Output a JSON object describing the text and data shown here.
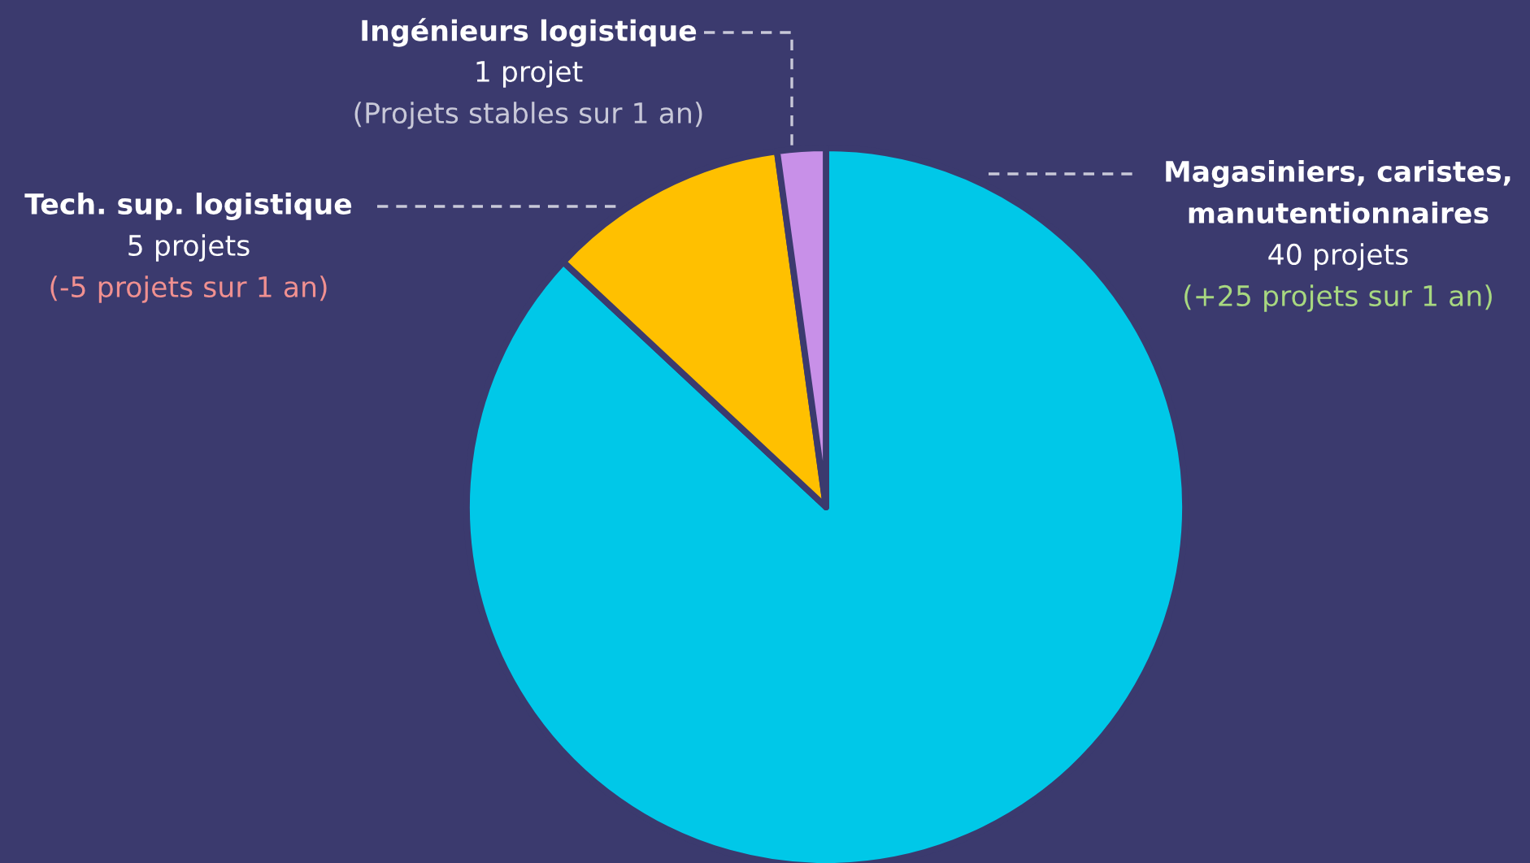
{
  "chart_data": {
    "type": "pie",
    "categories": [
      "Magasiniers, caristes,\nmanutentionnaires",
      "Tech. sup. logistique",
      "Ingénieurs logistique"
    ],
    "values": [
      40,
      5,
      1
    ],
    "colors": [
      "#00c8e8",
      "#ffc000",
      "#c890e8"
    ],
    "value_labels": [
      "40 projets",
      "5 projets",
      "1 projet"
    ],
    "annotations": [
      "(+25 projets sur 1 an)",
      "(-5 projets sur 1 an)",
      "(Projets stables sur 1 an)"
    ],
    "legend": false
  }
}
